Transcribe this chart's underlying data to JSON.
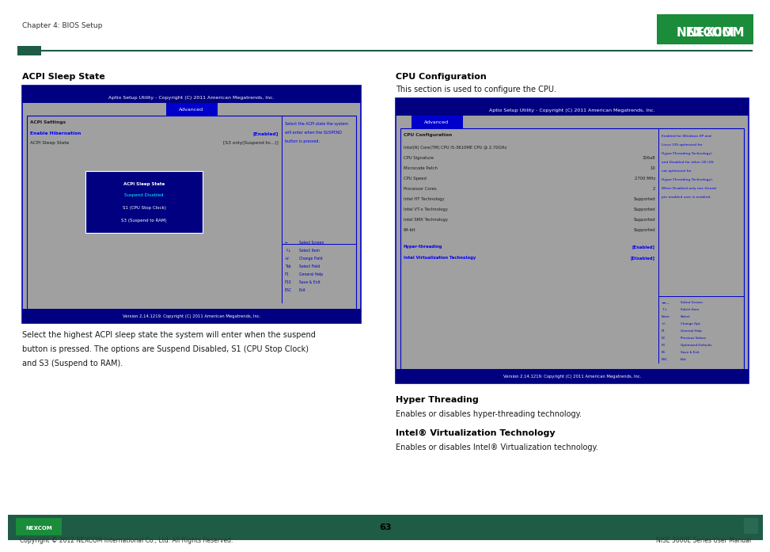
{
  "page_width": 9.54,
  "page_height": 6.72,
  "bg_color": "#ffffff",
  "header_text": "Chapter 4: BIOS Setup",
  "footer_text_center": "63",
  "footer_text_left": "Copyright © 2012 NEXCOM International Co., Ltd. All Rights Reserved.",
  "footer_text_right": "NISE 3600E Series User Manual",
  "left_section_title": "ACPI Sleep State",
  "left_bios_header": "Aptio Setup Utility - Copyright (C) 2011 American Megatrends, Inc.",
  "left_bios_tab": "Advanced",
  "left_bios_content_title": "ACPI Settings",
  "left_bios_item1": "Enable Hibernation",
  "left_bios_item1_val": "[Enabled]",
  "left_bios_item2": "ACPI Sleep State",
  "left_bios_item2_val": "[S3 only(Suspend to...)]",
  "left_bios_help": [
    "Select the ACPI state the system",
    "will enter when the SUSPEND",
    "button is pressed."
  ],
  "left_bios_popup_title": "ACPI Sleep State",
  "left_bios_popup_items": [
    "Suspend Disabled",
    "S1 (CPU Stop Clock)",
    "S3 (Suspend to RAM)"
  ],
  "left_bios_keys": [
    [
      "←",
      "Select Screen"
    ],
    [
      "↑↓",
      "Select Item"
    ],
    [
      "+/-",
      "Change Field"
    ],
    [
      "Tab",
      "Select Field"
    ],
    [
      "F1",
      "General Help"
    ],
    [
      "F10",
      "Save & Exit"
    ],
    [
      "ESC",
      "Exit"
    ]
  ],
  "left_bios_version": "Version 2.14.1219. Copyright (C) 2011 American Megatrends, Inc.",
  "left_desc": [
    "Select the highest ACPI sleep state the system will enter when the suspend",
    "button is pressed. The options are Suspend Disabled, S1 (CPU Stop Clock)",
    "and S3 (Suspend to RAM)."
  ],
  "right_section_title": "CPU Configuration",
  "right_section_intro": "This section is used to configure the CPU.",
  "right_bios_header": "Aptio Setup Utility - Copyright (C) 2011 American Megatrends, Inc.",
  "right_bios_tab": "Advanced",
  "right_cpu_title": "CPU Configuration",
  "right_cpu_items": [
    [
      "Intel(R) Core(TM) CPU i5-3610ME CPU @ 2.70GHz",
      ""
    ],
    [
      "CPU Signature",
      "306a8"
    ],
    [
      "Microcode Patch",
      "10"
    ],
    [
      "CPU Speed",
      "2700 MHz"
    ],
    [
      "Processor Cores",
      "2"
    ],
    [
      "Intel HT Technology",
      "Supported"
    ],
    [
      "Intel VT-x Technology",
      "Supported"
    ],
    [
      "Intel SMX Technology",
      "Supported"
    ],
    [
      "64-bit",
      "Supported"
    ]
  ],
  "right_cpu_ht": "Hyper-threading",
  "right_cpu_ht_val": "[Enabled]",
  "right_cpu_vt": "Intel Virtualization Technology",
  "right_cpu_vt_val": "[Disabled]",
  "right_bios_help": [
    "Enabled for Windows XP and",
    "Linux (OS optimized for",
    "Hyper-Threading Technology)",
    "and Disabled for other OS (OS",
    "not optimized for",
    "Hyper-Threading Technology).",
    "When Disabled only one thread",
    "per enabled core is enabled."
  ],
  "right_bios_keys": [
    [
      "→←―",
      "Select Screen"
    ],
    [
      "↑↓",
      "Select Item"
    ],
    [
      "Enter",
      "Select"
    ],
    [
      "+/-",
      "Change Opt."
    ],
    [
      "F1",
      "General Help"
    ],
    [
      "F2",
      "Previous Values"
    ],
    [
      "F3",
      "Optimized Defaults"
    ],
    [
      "F4",
      "Save & Exit"
    ],
    [
      "ESC",
      "Exit"
    ]
  ],
  "right_bios_version": "Version 2.14.1219. Copyright (C) 2011 American Megatrends, Inc.",
  "right_ht_title": "Hyper Threading",
  "right_ht_desc": "Enables or disables hyper-threading technology.",
  "right_vt_title": "Intel® Virtualization Technology",
  "right_vt_desc": "Enables or disables Intel® Virtualization technology."
}
